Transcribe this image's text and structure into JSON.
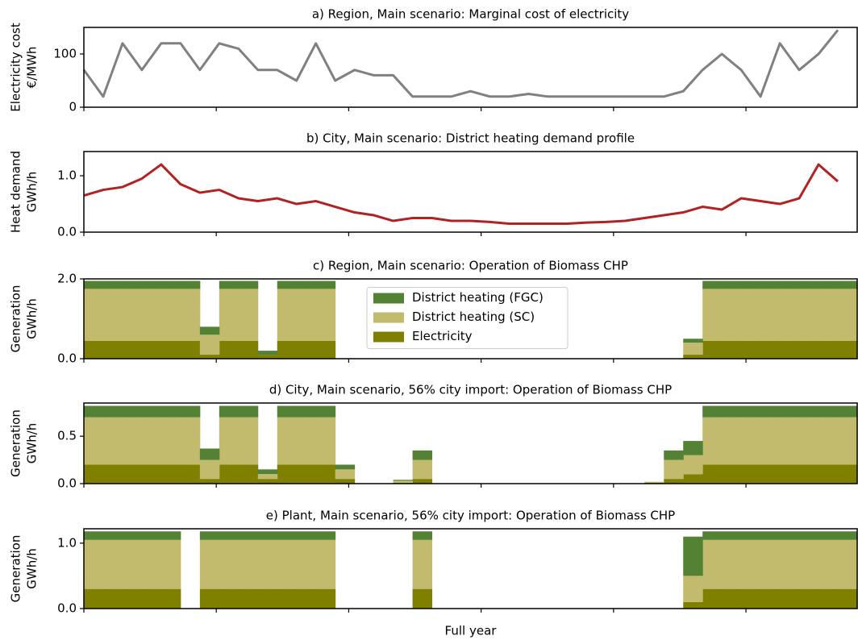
{
  "chart_data": [
    {
      "type": "line",
      "title": "a) Region, Main scenario: Marginal cost of electricity",
      "ylabel": [
        "Electricity cost",
        "€/MWh"
      ],
      "x": [
        0,
        219,
        438,
        657,
        876,
        1095,
        1314,
        1533,
        1752,
        1971,
        2190,
        2409,
        2628,
        2847,
        3066,
        3285,
        3504,
        3723,
        3942,
        4161,
        4380,
        4599,
        4818,
        5037,
        5256,
        5475,
        5694,
        5913,
        6132,
        6351,
        6570,
        6789,
        7008,
        7227,
        7446,
        7665,
        7884,
        8103,
        8322,
        8541
      ],
      "xlim": [
        0,
        8760
      ],
      "xticks": [
        0,
        1500,
        3000,
        4500,
        6000,
        7500
      ],
      "ylim": [
        0,
        150
      ],
      "yticks": [
        0,
        100
      ],
      "series": [
        {
          "color": "#808080",
          "values": [
            70,
            20,
            120,
            70,
            120,
            120,
            70,
            120,
            110,
            70,
            70,
            50,
            120,
            50,
            70,
            60,
            60,
            20,
            20,
            20,
            30,
            20,
            20,
            25,
            20,
            20,
            20,
            20,
            20,
            20,
            20,
            30,
            70,
            100,
            70,
            20,
            120,
            70,
            100,
            145
          ]
        }
      ]
    },
    {
      "type": "line",
      "title": "b) City, Main scenario: District heating demand profile",
      "ylabel": [
        "Heat demand",
        "GWh/h"
      ],
      "x": [
        0,
        219,
        438,
        657,
        876,
        1095,
        1314,
        1533,
        1752,
        1971,
        2190,
        2409,
        2628,
        2847,
        3066,
        3285,
        3504,
        3723,
        3942,
        4161,
        4380,
        4599,
        4818,
        5037,
        5256,
        5475,
        5694,
        5913,
        6132,
        6351,
        6570,
        6789,
        7008,
        7227,
        7446,
        7665,
        7884,
        8103,
        8322,
        8541
      ],
      "xlim": [
        0,
        8760
      ],
      "xticks": [
        0,
        1500,
        3000,
        4500,
        6000,
        7500
      ],
      "ylim": [
        0,
        1.43
      ],
      "yticks": [
        {
          "value": 0,
          "label": "0.0"
        },
        {
          "value": 1,
          "label": "1.0"
        }
      ],
      "series": [
        {
          "color": "#b22222",
          "values": [
            0.65,
            0.75,
            0.8,
            0.95,
            1.2,
            0.85,
            0.7,
            0.75,
            0.6,
            0.55,
            0.6,
            0.5,
            0.55,
            0.45,
            0.35,
            0.3,
            0.2,
            0.25,
            0.25,
            0.2,
            0.2,
            0.18,
            0.15,
            0.15,
            0.15,
            0.15,
            0.17,
            0.18,
            0.2,
            0.25,
            0.3,
            0.35,
            0.45,
            0.4,
            0.6,
            0.55,
            0.5,
            0.6,
            1.2,
            0.9
          ]
        }
      ]
    },
    {
      "type": "area",
      "title": "c) Region, Main scenario: Operation of Biomass CHP",
      "ylabel": [
        "Generation",
        "GWh/h"
      ],
      "x": [
        0,
        219,
        438,
        657,
        876,
        1095,
        1314,
        1533,
        1752,
        1971,
        2190,
        2409,
        2628,
        2847,
        3066,
        3285,
        3504,
        3723,
        3942,
        4161,
        4380,
        4599,
        4818,
        5037,
        5256,
        5475,
        5694,
        5913,
        6132,
        6351,
        6570,
        6789,
        7008,
        7227,
        7446,
        7665,
        7884,
        8103,
        8322,
        8541
      ],
      "xlim": [
        0,
        8760
      ],
      "xticks": [
        0,
        1500,
        3000,
        4500,
        6000,
        7500
      ],
      "ylim": [
        0,
        2.0
      ],
      "yticks": [
        {
          "value": 0,
          "label": "0.0"
        },
        {
          "value": 2,
          "label": "2.0"
        }
      ],
      "legend": "center",
      "series": [
        {
          "name": "District heating (FGC)",
          "color": "#548235",
          "values": [
            0.2,
            0.2,
            0.2,
            0.2,
            0.2,
            0.2,
            0.2,
            0.2,
            0.2,
            0.1,
            0.2,
            0.2,
            0.2,
            0,
            0,
            0,
            0,
            0,
            0,
            0,
            0,
            0,
            0,
            0,
            0,
            0,
            0,
            0,
            0,
            0,
            0,
            0.1,
            0.2,
            0.2,
            0.2,
            0.2,
            0.2,
            0.2,
            0.2,
            0.2
          ]
        },
        {
          "name": "District heating (SC)",
          "color": "#c2bb6e",
          "values": [
            1.3,
            1.3,
            1.3,
            1.3,
            1.3,
            1.3,
            0.5,
            1.3,
            1.3,
            0,
            1.3,
            1.3,
            1.3,
            0,
            0,
            0,
            0,
            0,
            0,
            0,
            0,
            0,
            0,
            0,
            0,
            0,
            0,
            0,
            0,
            0,
            0,
            0.3,
            1.3,
            1.3,
            1.3,
            1.3,
            1.3,
            1.3,
            1.3,
            1.3
          ]
        },
        {
          "name": "Electricity",
          "color": "#808000",
          "values": [
            0.45,
            0.45,
            0.45,
            0.45,
            0.45,
            0.45,
            0.1,
            0.45,
            0.45,
            0.1,
            0.45,
            0.45,
            0.45,
            0,
            0,
            0,
            0,
            0,
            0,
            0,
            0,
            0,
            0,
            0,
            0,
            0,
            0,
            0,
            0,
            0,
            0,
            0.1,
            0.45,
            0.45,
            0.45,
            0.45,
            0.45,
            0.45,
            0.45,
            0.45
          ]
        }
      ]
    },
    {
      "type": "area",
      "title": "d) City, Main scenario, 56% city import: Operation of Biomass CHP",
      "ylabel": [
        "Generation",
        "GWh/h"
      ],
      "x": [
        0,
        219,
        438,
        657,
        876,
        1095,
        1314,
        1533,
        1752,
        1971,
        2190,
        2409,
        2628,
        2847,
        3066,
        3285,
        3504,
        3723,
        3942,
        4161,
        4380,
        4599,
        4818,
        5037,
        5256,
        5475,
        5694,
        5913,
        6132,
        6351,
        6570,
        6789,
        7008,
        7227,
        7446,
        7665,
        7884,
        8103,
        8322,
        8541
      ],
      "xlim": [
        0,
        8760
      ],
      "xticks": [
        0,
        1500,
        3000,
        4500,
        6000,
        7500
      ],
      "ylim": [
        0,
        0.85
      ],
      "yticks": [
        {
          "value": 0,
          "label": "0.0"
        },
        0.5
      ],
      "series": [
        {
          "color": "#548235",
          "values": [
            0.12,
            0.12,
            0.12,
            0.12,
            0.12,
            0.12,
            0.12,
            0.12,
            0.12,
            0.05,
            0.12,
            0.12,
            0.12,
            0.05,
            0,
            0,
            0.01,
            0.1,
            0,
            0,
            0,
            0,
            0,
            0,
            0,
            0,
            0,
            0,
            0,
            0,
            0.1,
            0.15,
            0.12,
            0.12,
            0.12,
            0.12,
            0.12,
            0.12,
            0.12,
            0.12
          ]
        },
        {
          "color": "#c2bb6e",
          "values": [
            0.5,
            0.5,
            0.5,
            0.5,
            0.5,
            0.5,
            0.2,
            0.5,
            0.5,
            0.05,
            0.5,
            0.5,
            0.5,
            0.1,
            0,
            0,
            0.02,
            0.2,
            0,
            0,
            0,
            0,
            0,
            0,
            0,
            0,
            0,
            0,
            0,
            0.01,
            0.2,
            0.2,
            0.5,
            0.5,
            0.5,
            0.5,
            0.5,
            0.5,
            0.5,
            0.5
          ]
        },
        {
          "color": "#808000",
          "values": [
            0.2,
            0.2,
            0.2,
            0.2,
            0.2,
            0.2,
            0.05,
            0.2,
            0.2,
            0.05,
            0.2,
            0.2,
            0.2,
            0.05,
            0,
            0,
            0.01,
            0.05,
            0,
            0,
            0,
            0,
            0,
            0,
            0,
            0,
            0,
            0,
            0,
            0.01,
            0.05,
            0.1,
            0.2,
            0.2,
            0.2,
            0.2,
            0.2,
            0.2,
            0.2,
            0.2
          ]
        }
      ]
    },
    {
      "type": "area",
      "title": "e) Plant, Main scenario, 56% city import: Operation of Biomass CHP",
      "ylabel": [
        "Generation",
        "GWh/h"
      ],
      "xlabel": "Full year",
      "x": [
        0,
        219,
        438,
        657,
        876,
        1095,
        1314,
        1533,
        1752,
        1971,
        2190,
        2409,
        2628,
        2847,
        3066,
        3285,
        3504,
        3723,
        3942,
        4161,
        4380,
        4599,
        4818,
        5037,
        5256,
        5475,
        5694,
        5913,
        6132,
        6351,
        6570,
        6789,
        7008,
        7227,
        7446,
        7665,
        7884,
        8103,
        8322,
        8541
      ],
      "xlim": [
        0,
        8760
      ],
      "xticks": [
        0,
        1500,
        3000,
        4500,
        6000,
        7500
      ],
      "ylim": [
        0,
        1.22
      ],
      "yticks": [
        {
          "value": 0,
          "label": "0.0"
        },
        {
          "value": 1,
          "label": "1.0"
        }
      ],
      "series": [
        {
          "color": "#548235",
          "values": [
            0.13,
            0.13,
            0.13,
            0.13,
            0.13,
            0,
            0.13,
            0.13,
            0.13,
            0.13,
            0.13,
            0.13,
            0.13,
            0,
            0,
            0,
            0,
            0.13,
            0,
            0,
            0,
            0,
            0,
            0,
            0,
            0,
            0,
            0,
            0,
            0,
            0,
            0.6,
            0.13,
            0.13,
            0.13,
            0.13,
            0.13,
            0.13,
            0.13,
            0.13
          ]
        },
        {
          "color": "#c2bb6e",
          "values": [
            0.75,
            0.75,
            0.75,
            0.75,
            0.75,
            0,
            0.75,
            0.75,
            0.75,
            0.75,
            0.75,
            0.75,
            0.75,
            0,
            0,
            0,
            0,
            0.75,
            0,
            0,
            0,
            0,
            0,
            0,
            0,
            0,
            0,
            0,
            0,
            0,
            0,
            0.4,
            0.75,
            0.75,
            0.75,
            0.75,
            0.75,
            0.75,
            0.75,
            0.75
          ]
        },
        {
          "color": "#808000",
          "values": [
            0.3,
            0.3,
            0.3,
            0.3,
            0.3,
            0,
            0.3,
            0.3,
            0.3,
            0.3,
            0.3,
            0.3,
            0.3,
            0,
            0,
            0,
            0,
            0.3,
            0,
            0,
            0,
            0,
            0,
            0,
            0,
            0,
            0,
            0,
            0,
            0,
            0,
            0.1,
            0.3,
            0.3,
            0.3,
            0.3,
            0.3,
            0.3,
            0.3,
            0.3
          ]
        }
      ]
    }
  ]
}
